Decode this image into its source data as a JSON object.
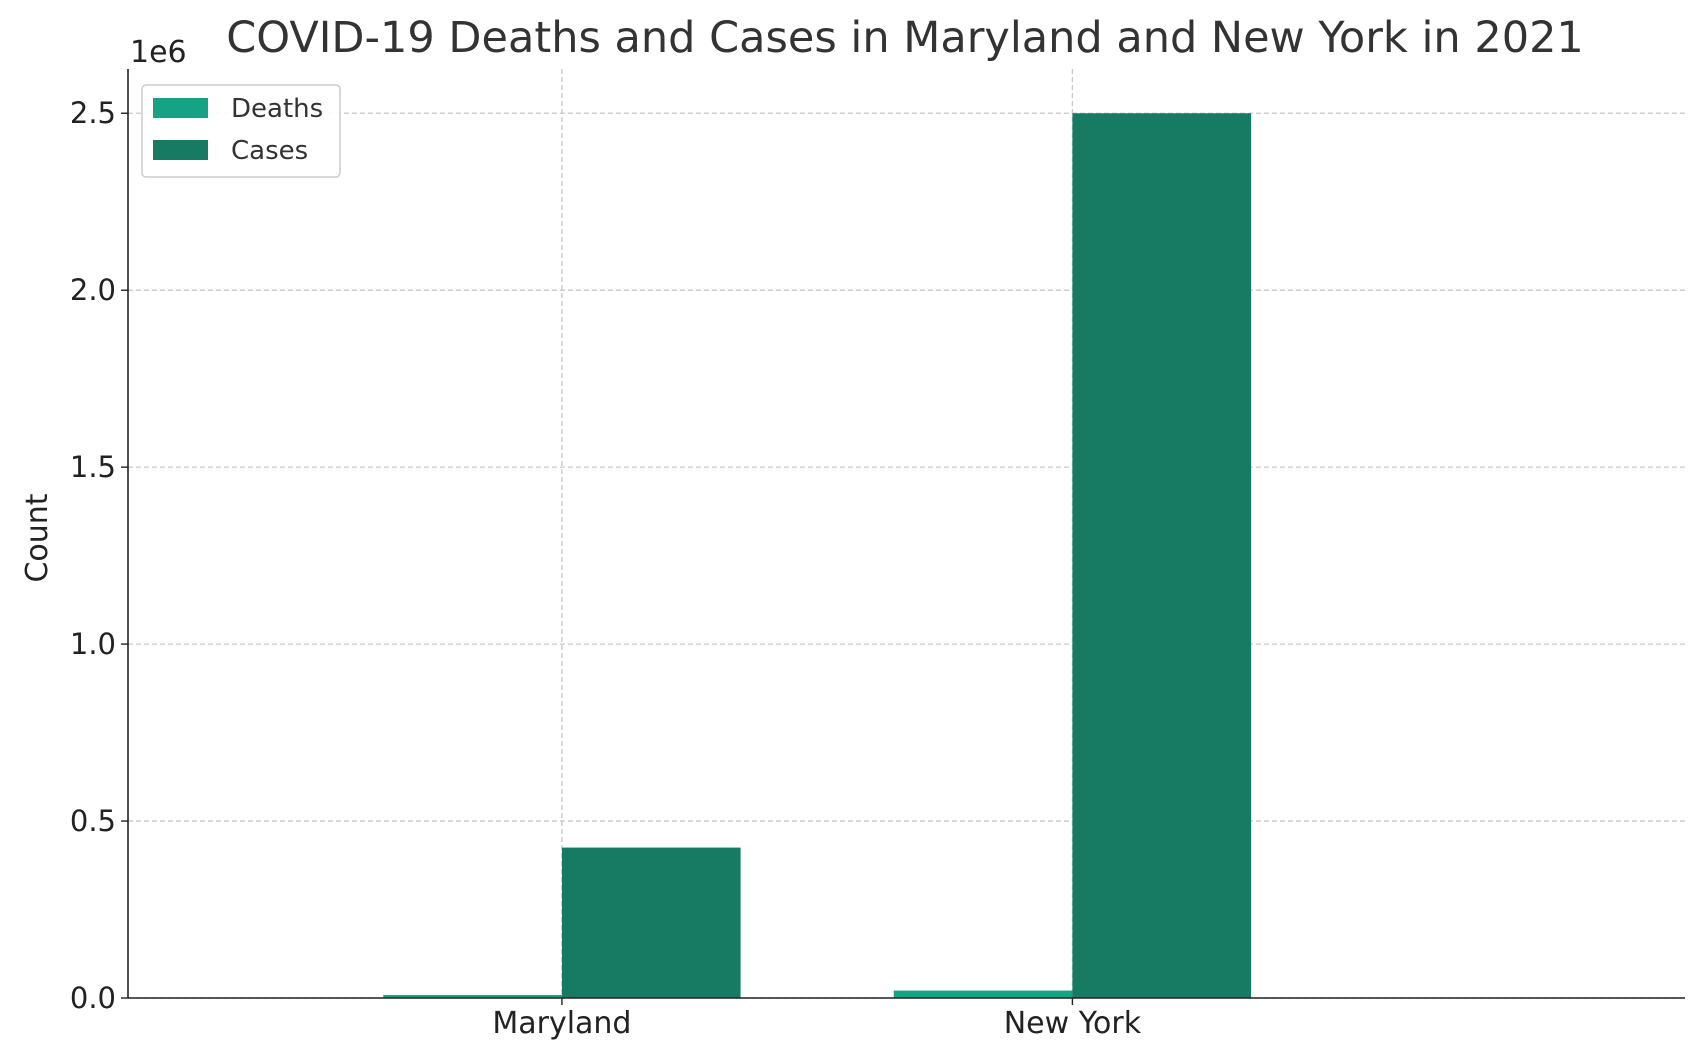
{
  "chart_data": {
    "type": "bar",
    "title": "COVID-19 Deaths and Cases in Maryland and New York in 2021",
    "xlabel": "",
    "ylabel": "Count",
    "offset_label": "1e6",
    "categories": [
      "Maryland",
      "New York"
    ],
    "series": [
      {
        "name": "Deaths",
        "values": [
          8500,
          21000
        ],
        "color": "#16a383"
      },
      {
        "name": "Cases",
        "values": [
          425000,
          2500000
        ],
        "color": "#177a63"
      }
    ],
    "ylim": [
      0,
      2625000
    ],
    "yticks": [
      0,
      500000,
      1000000,
      1500000,
      2000000,
      2500000
    ],
    "ytick_labels": [
      "0.0",
      "0.5",
      "1.0",
      "1.5",
      "2.0",
      "2.5"
    ],
    "grid": true,
    "legend_position": "top-left"
  }
}
